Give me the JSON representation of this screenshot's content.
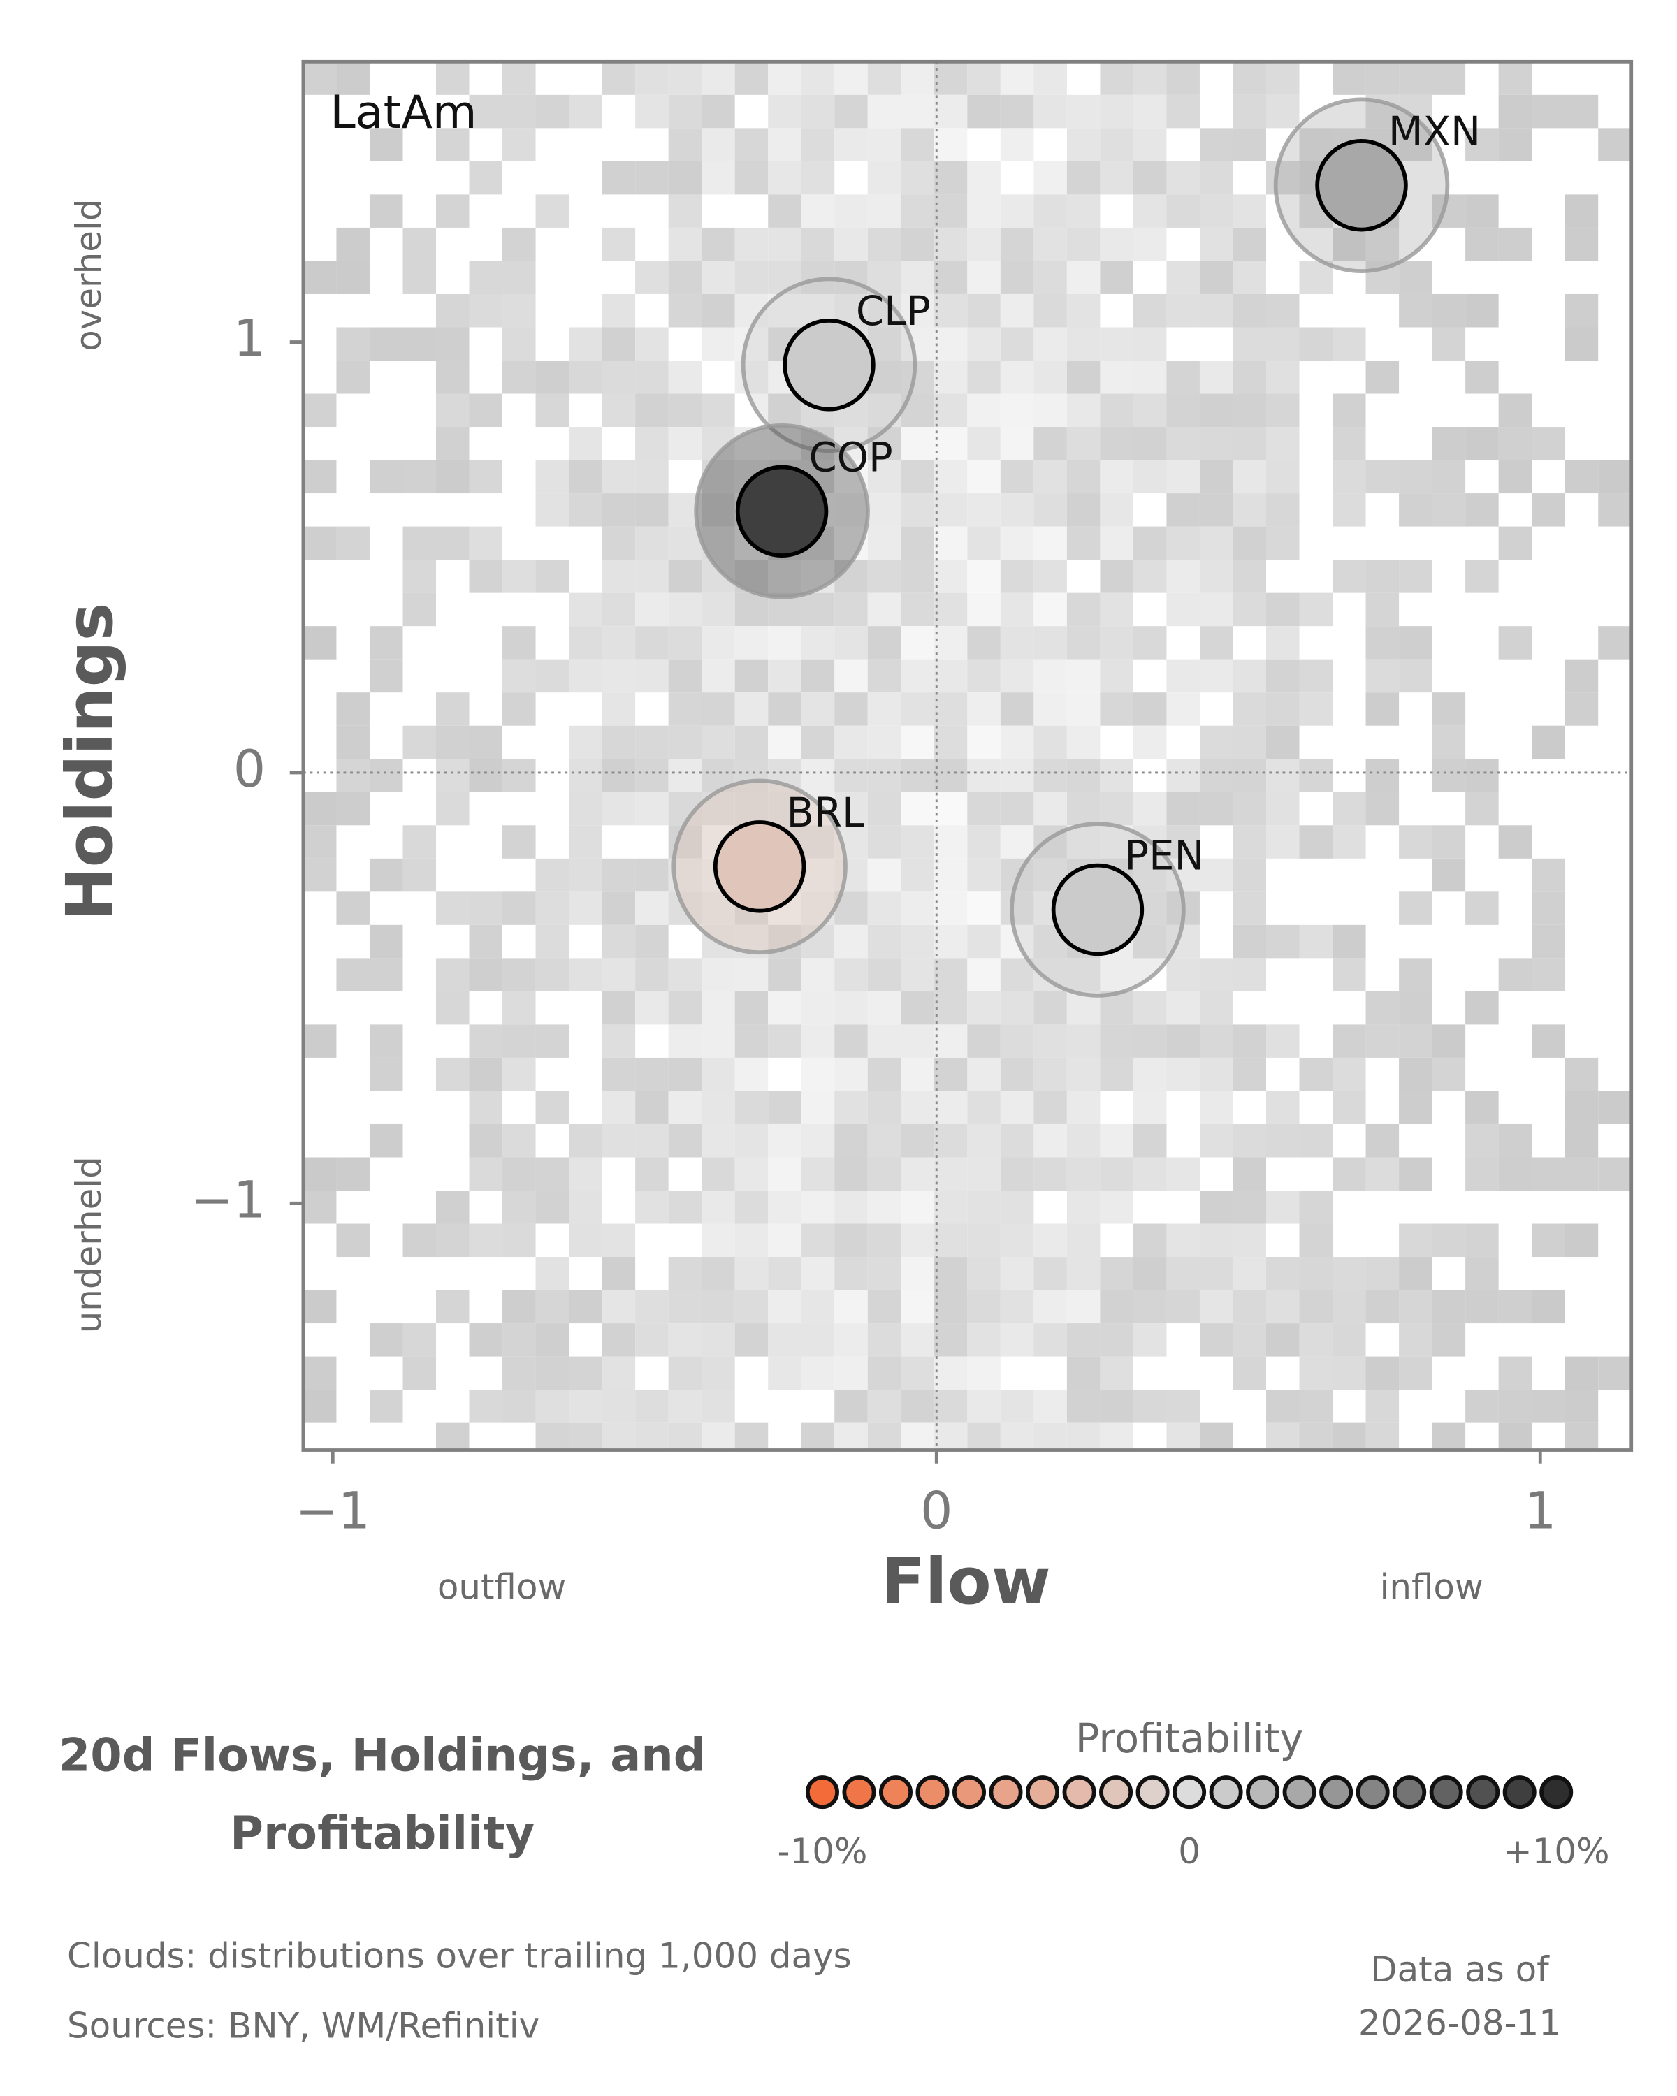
{
  "chart_data": {
    "type": "scatter",
    "title": "20d Flows, Holdings, and Profitability",
    "panel_label": "LatAm",
    "x_label": "Flow",
    "y_label": "Holdings",
    "x_low_label": "outflow",
    "x_high_label": "inflow",
    "y_high_label": "overheld",
    "y_low_label": "underheld",
    "xlim": [
      -1.049,
      1.151
    ],
    "ylim": [
      -1.573,
      1.651
    ],
    "xticks": [
      {
        "value": -1,
        "label": "−1"
      },
      0,
      1
    ],
    "yticks": [
      {
        "value": -1,
        "label": "−1"
      },
      0,
      1
    ],
    "points": [
      {
        "name": "MXN",
        "x": 0.704,
        "y": 1.364,
        "profitability": 3
      },
      {
        "name": "CLP",
        "x": -0.178,
        "y": 0.947,
        "profitability": 1
      },
      {
        "name": "COP",
        "x": -0.256,
        "y": 0.607,
        "profitability": 9
      },
      {
        "name": "BRL",
        "x": -0.293,
        "y": -0.218,
        "profitability": -2
      },
      {
        "name": "PEN",
        "x": 0.267,
        "y": -0.318,
        "profitability": 1
      }
    ],
    "colorbar": {
      "title": "Profitability",
      "range": [
        -10,
        10
      ],
      "colors": [
        "#f26b38",
        "#dcdcdc",
        "#2e2e2e"
      ],
      "ticks": [
        {
          "value": -10,
          "label": "-10%"
        },
        0,
        {
          "value": 10,
          "label": "+10%"
        }
      ]
    },
    "notes": [
      "Clouds:  distributions over trailing 1,000 days",
      "Sources:  BNY, WM/Refinitiv"
    ],
    "asof_label": "Data as of",
    "asof": "2026-08-11"
  }
}
